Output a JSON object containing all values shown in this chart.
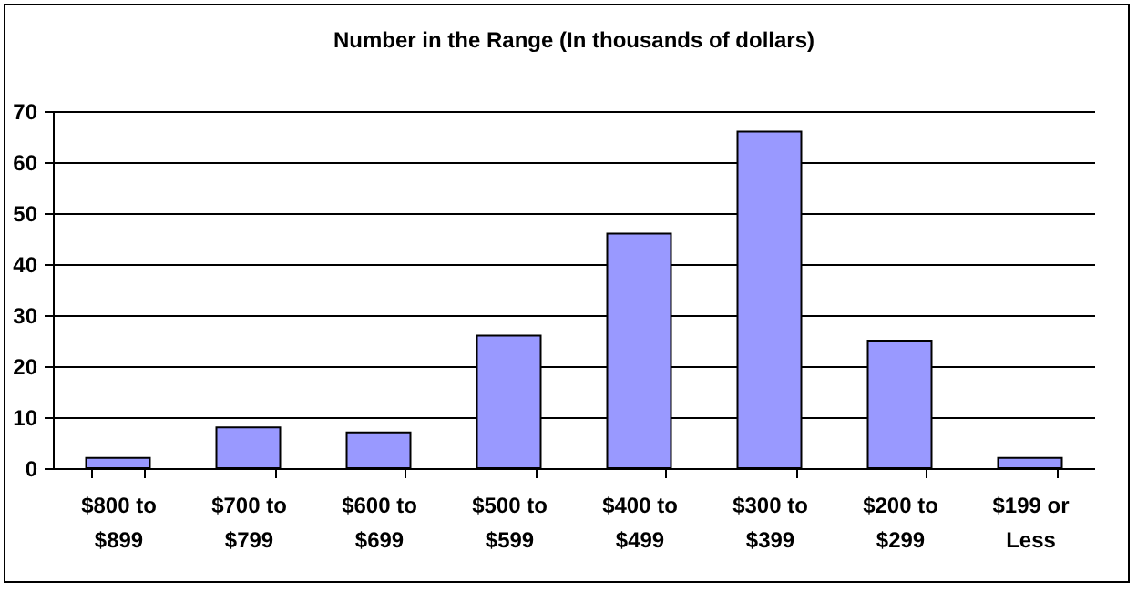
{
  "chart_data": {
    "type": "bar",
    "title": "Number in the Range (In thousands of dollars)",
    "categories": [
      "$800 to $899",
      "$700 to $799",
      "$600 to $699",
      "$500 to $599",
      "$400 to $499",
      "$300 to $399",
      "$200 to $299",
      "$199 or Less"
    ],
    "values": [
      2,
      8,
      7,
      26,
      46,
      66,
      25,
      2
    ],
    "color": "#9999ff",
    "ylim": [
      0,
      70
    ],
    "yticks": [
      0,
      10,
      20,
      30,
      40,
      50,
      60,
      70
    ],
    "grid": "y"
  }
}
